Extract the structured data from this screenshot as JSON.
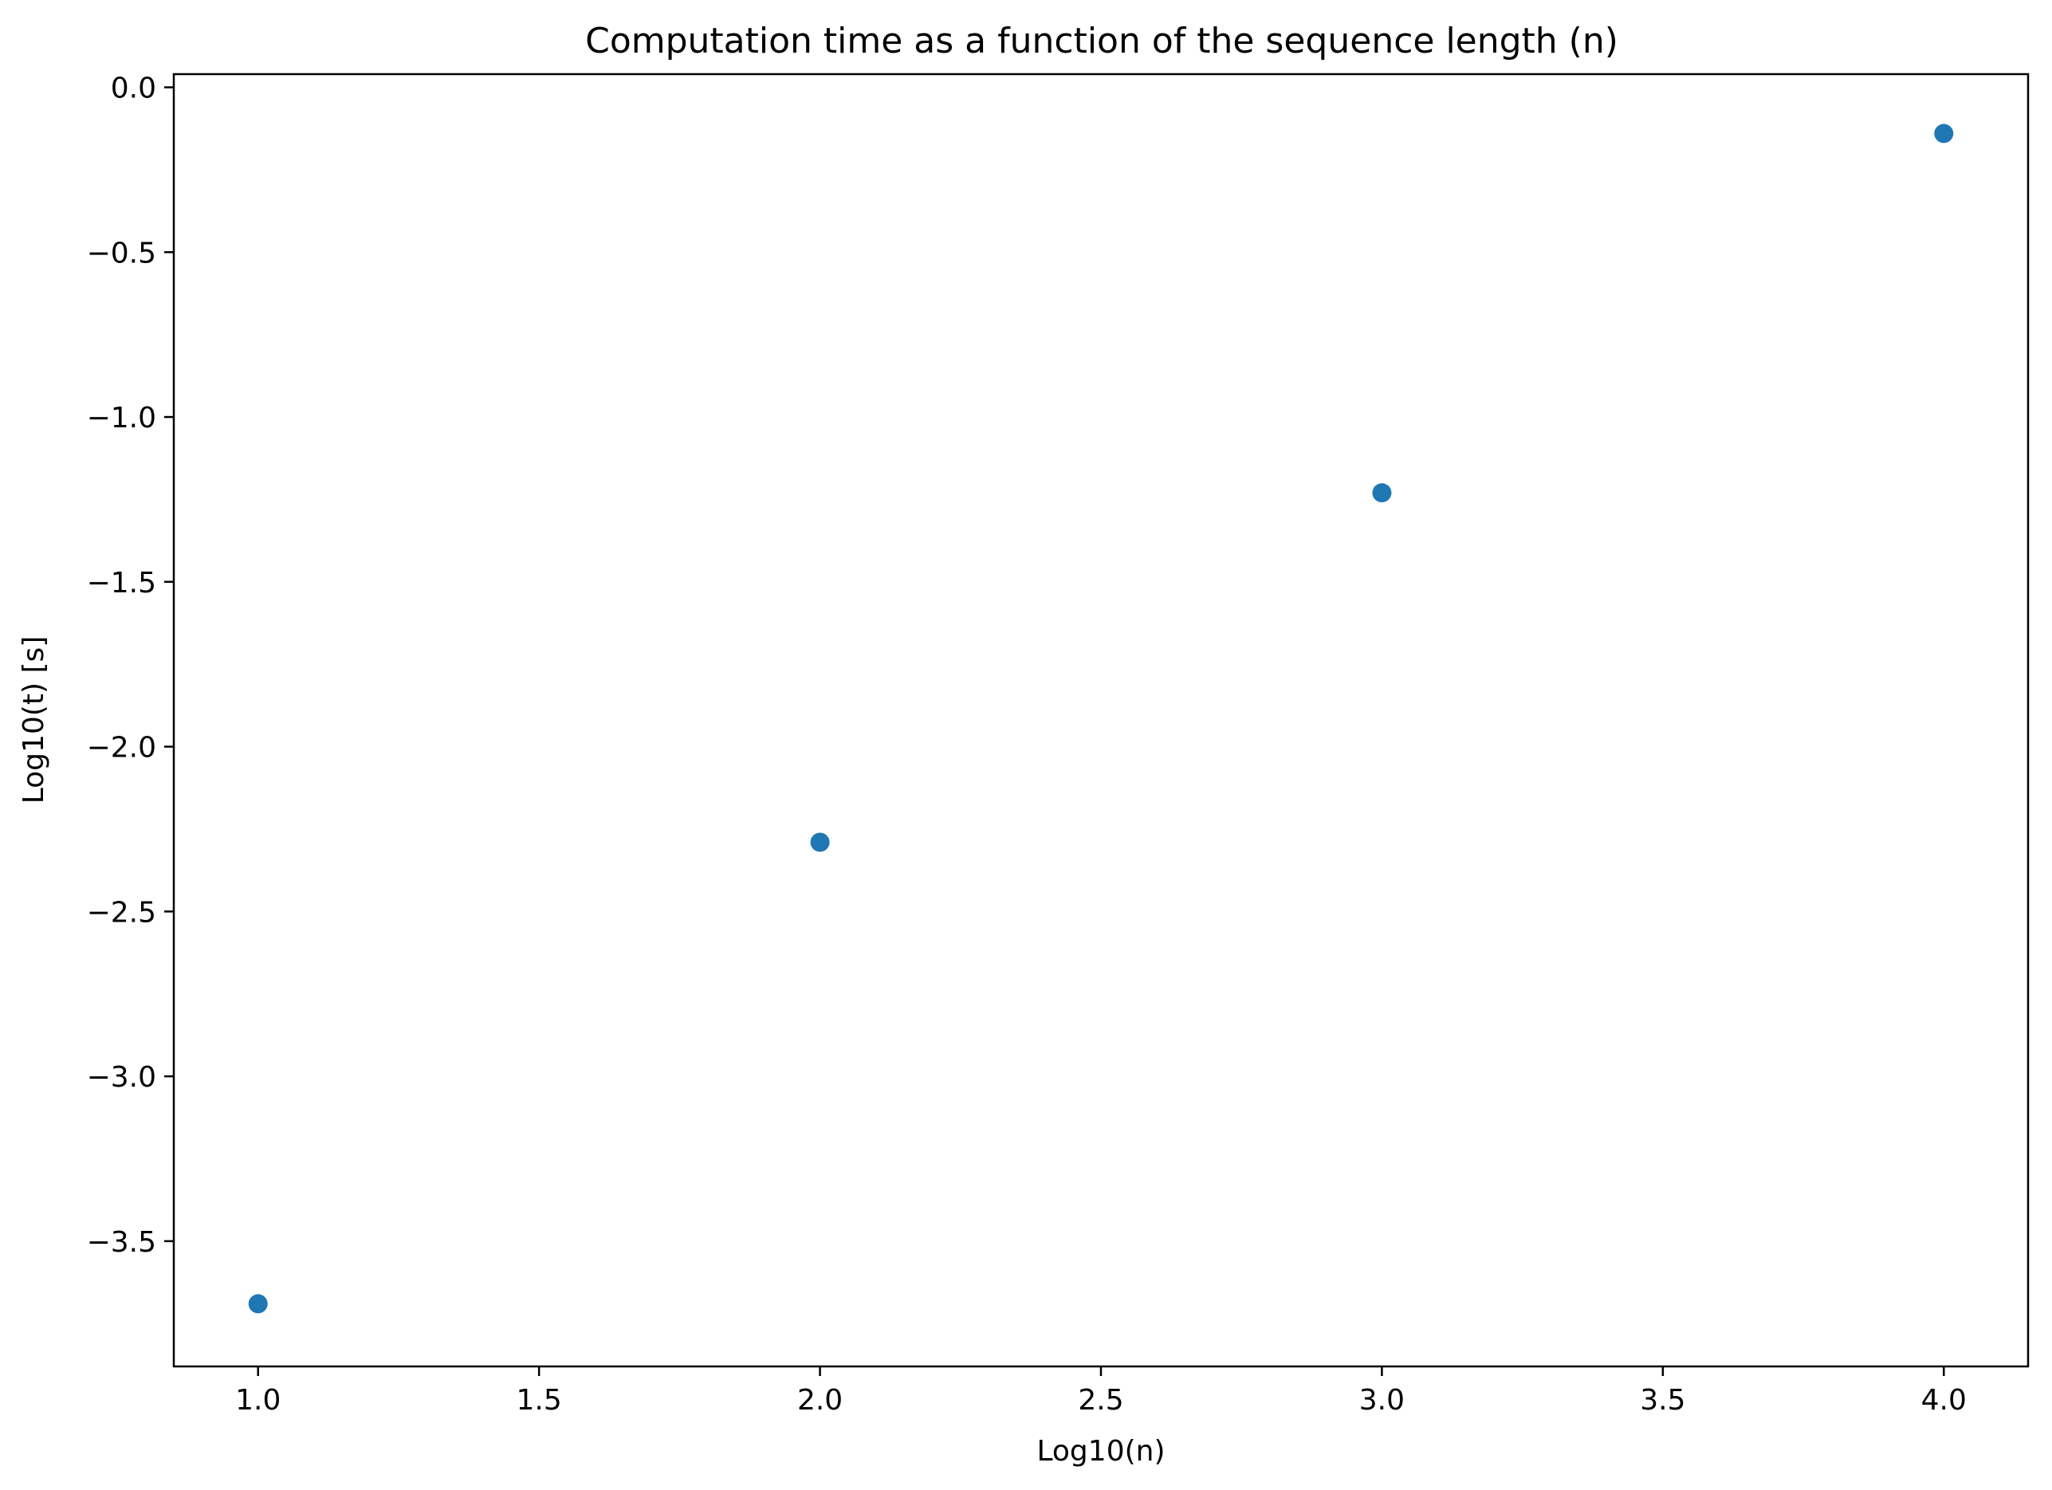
{
  "chart_data": {
    "type": "scatter",
    "title": "Computation time as a function of the sequence length (n)",
    "xlabel": "Log10(n)",
    "ylabel": "Log10(t) [s]",
    "xlim": [
      0.85,
      4.15
    ],
    "ylim": [
      -3.88,
      0.04
    ],
    "x_ticks": [
      1.0,
      1.5,
      2.0,
      2.5,
      3.0,
      3.5,
      4.0
    ],
    "x_tick_labels": [
      "1.0",
      "1.5",
      "2.0",
      "2.5",
      "3.0",
      "3.5",
      "4.0"
    ],
    "y_ticks": [
      0.0,
      -0.5,
      -1.0,
      -1.5,
      -2.0,
      -2.5,
      -3.0,
      -3.5
    ],
    "y_tick_labels": [
      "0.0",
      "−0.5",
      "−1.0",
      "−1.5",
      "−2.0",
      "−2.5",
      "−3.0",
      "−3.5"
    ],
    "grid": false,
    "series": [
      {
        "color": "#1f77b4",
        "points": [
          {
            "x": 1.0,
            "y": -3.69
          },
          {
            "x": 2.0,
            "y": -2.29
          },
          {
            "x": 3.0,
            "y": -1.23
          },
          {
            "x": 4.0,
            "y": -0.14
          }
        ]
      }
    ]
  }
}
